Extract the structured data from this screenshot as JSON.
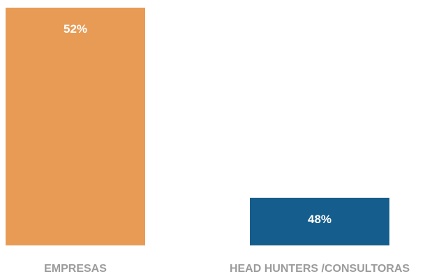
{
  "chart_data": {
    "type": "bar",
    "categories": [
      "EMPRESAS",
      "HEAD HUNTERS /CONSULTORAS"
    ],
    "values": [
      52,
      48
    ],
    "data_labels": [
      "52%",
      "48%"
    ],
    "colors": [
      "#E79B55",
      "#155D8C"
    ],
    "title": "",
    "xlabel": "",
    "ylabel": "",
    "ylim": [
      47,
      52
    ],
    "grid": false,
    "legend": "none"
  }
}
